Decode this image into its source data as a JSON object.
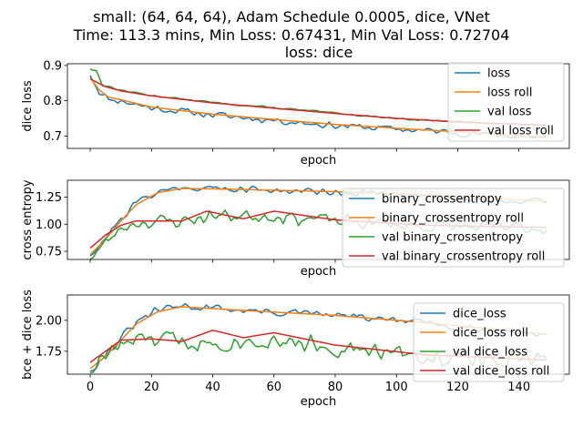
{
  "figure": {
    "title_lines": [
      "small: (64, 64, 64), Adam Schedule 0.0005, dice, VNet",
      "Time: 113.3 mins, Min Loss: 0.67431, Min Val Loss: 0.72704",
      "loss: dice"
    ]
  },
  "colors": {
    "blue": "#1f77b4",
    "orange": "#ff7f0e",
    "green": "#2ca02c",
    "red": "#d62728"
  },
  "chart_data": [
    {
      "type": "line",
      "ylabel": "dice loss",
      "xlabel": "epoch",
      "xlim": [
        -7.45,
        156.45
      ],
      "ylim": [
        0.665,
        0.905
      ],
      "yticks": [
        0.7,
        0.8,
        0.9
      ],
      "ytick_labels": [
        "0.7",
        "0.8",
        "0.9"
      ],
      "xticks": [
        0,
        20,
        40,
        60,
        80,
        100,
        120,
        140
      ],
      "xtick_labels": [],
      "legend": "top-right",
      "series": [
        {
          "name": "loss",
          "color": "#1f77b4",
          "x_start": 0,
          "x_end": 149,
          "base": [
            [
              0,
              0.875
            ],
            [
              3,
              0.825
            ],
            [
              6,
              0.805
            ],
            [
              10,
              0.8
            ],
            [
              20,
              0.78
            ],
            [
              40,
              0.76
            ],
            [
              60,
              0.745
            ],
            [
              80,
              0.73
            ],
            [
              100,
              0.72
            ],
            [
              120,
              0.71
            ],
            [
              149,
              0.695
            ]
          ],
          "noise": 0.012,
          "seed": 11
        },
        {
          "name": "loss roll",
          "color": "#ff7f0e",
          "x_start": 0,
          "x_end": 149,
          "base": [
            [
              0,
              0.865
            ],
            [
              3,
              0.83
            ],
            [
              6,
              0.81
            ],
            [
              10,
              0.803
            ],
            [
              20,
              0.782
            ],
            [
              40,
              0.762
            ],
            [
              60,
              0.747
            ],
            [
              80,
              0.733
            ],
            [
              100,
              0.722
            ],
            [
              120,
              0.712
            ],
            [
              149,
              0.697
            ]
          ],
          "noise": 0.0,
          "seed": 12
        },
        {
          "name": "val loss",
          "color": "#2ca02c",
          "x_start": 0,
          "x_end": 149,
          "base": [
            [
              0,
              0.89
            ],
            [
              2,
              0.885
            ],
            [
              4,
              0.845
            ],
            [
              10,
              0.83
            ],
            [
              20,
              0.815
            ],
            [
              40,
              0.795
            ],
            [
              60,
              0.78
            ],
            [
              80,
              0.765
            ],
            [
              100,
              0.75
            ],
            [
              120,
              0.74
            ],
            [
              149,
              0.73
            ]
          ],
          "noise": 0.003,
          "seed": 13
        },
        {
          "name": "val loss roll",
          "color": "#d62728",
          "x_start": 0,
          "x_end": 149,
          "base": [
            [
              0,
              0.862
            ],
            [
              5,
              0.84
            ],
            [
              10,
              0.828
            ],
            [
              20,
              0.814
            ],
            [
              40,
              0.794
            ],
            [
              60,
              0.779
            ],
            [
              80,
              0.764
            ],
            [
              100,
              0.75
            ],
            [
              120,
              0.74
            ],
            [
              149,
              0.731
            ]
          ],
          "noise": 0.0,
          "seed": 14
        }
      ]
    },
    {
      "type": "line",
      "ylabel": "cross entropy",
      "xlabel": "epoch",
      "xlim": [
        -7.45,
        156.45
      ],
      "ylim": [
        0.675,
        1.405
      ],
      "yticks": [
        0.75,
        1.0,
        1.25
      ],
      "ytick_labels": [
        "0.75",
        "1.00",
        "1.25"
      ],
      "xticks": [
        0,
        20,
        40,
        60,
        80,
        100,
        120,
        140
      ],
      "xtick_labels": [],
      "legend": "right",
      "series": [
        {
          "name": "binary_crossentropy",
          "color": "#1f77b4",
          "x_start": 0,
          "x_end": 149,
          "base": [
            [
              0,
              0.72
            ],
            [
              5,
              0.88
            ],
            [
              10,
              1.05
            ],
            [
              15,
              1.2
            ],
            [
              22,
              1.3
            ],
            [
              30,
              1.34
            ],
            [
              50,
              1.32
            ],
            [
              80,
              1.3
            ],
            [
              110,
              1.26
            ],
            [
              149,
              1.2
            ]
          ],
          "noise": 0.04,
          "seed": 21
        },
        {
          "name": "binary_crossentropy roll",
          "color": "#ff7f0e",
          "x_start": 0,
          "x_end": 149,
          "base": [
            [
              0,
              0.72
            ],
            [
              5,
              0.86
            ],
            [
              10,
              1.03
            ],
            [
              15,
              1.18
            ],
            [
              22,
              1.29
            ],
            [
              30,
              1.33
            ],
            [
              50,
              1.32
            ],
            [
              80,
              1.3
            ],
            [
              110,
              1.27
            ],
            [
              149,
              1.21
            ]
          ],
          "noise": 0.0,
          "seed": 22
        },
        {
          "name": "val binary_crossentropy",
          "color": "#2ca02c",
          "x_start": 0,
          "x_end": 149,
          "base": [
            [
              0,
              0.7
            ],
            [
              5,
              0.82
            ],
            [
              10,
              0.96
            ],
            [
              15,
              1.02
            ],
            [
              30,
              1.03
            ],
            [
              40,
              1.08
            ],
            [
              60,
              1.08
            ],
            [
              80,
              1.03
            ],
            [
              110,
              0.98
            ],
            [
              149,
              0.96
            ]
          ],
          "noise": 0.08,
          "seed": 23
        },
        {
          "name": "val binary_crossentropy roll",
          "color": "#d62728",
          "x_start": 0,
          "x_end": 149,
          "base": [
            [
              0,
              0.78
            ],
            [
              5,
              0.9
            ],
            [
              10,
              0.99
            ],
            [
              15,
              1.03
            ],
            [
              30,
              1.03
            ],
            [
              38,
              1.12
            ],
            [
              50,
              1.05
            ],
            [
              60,
              1.12
            ],
            [
              80,
              1.04
            ],
            [
              110,
              0.99
            ],
            [
              149,
              0.97
            ]
          ],
          "noise": 0.0,
          "seed": 24
        }
      ]
    },
    {
      "type": "line",
      "ylabel": "bce + dice loss",
      "xlabel": "epoch",
      "xlim": [
        -7.45,
        156.45
      ],
      "ylim": [
        1.565,
        2.205
      ],
      "yticks": [
        1.75,
        2.0
      ],
      "ytick_labels": [
        "1.75",
        "2.00"
      ],
      "xticks": [
        0,
        20,
        40,
        60,
        80,
        100,
        120,
        140
      ],
      "xtick_labels": [
        "0",
        "20",
        "40",
        "60",
        "80",
        "100",
        "120",
        "140"
      ],
      "legend": "top-right",
      "series": [
        {
          "name": "dice_loss",
          "color": "#1f77b4",
          "x_start": 0,
          "x_end": 149,
          "base": [
            [
              0,
              1.6
            ],
            [
              5,
              1.72
            ],
            [
              10,
              1.85
            ],
            [
              15,
              1.98
            ],
            [
              22,
              2.08
            ],
            [
              30,
              2.12
            ],
            [
              50,
              2.08
            ],
            [
              80,
              2.04
            ],
            [
              110,
              1.98
            ],
            [
              149,
              1.88
            ]
          ],
          "noise": 0.04,
          "seed": 31
        },
        {
          "name": "dice_loss roll",
          "color": "#ff7f0e",
          "x_start": 0,
          "x_end": 149,
          "base": [
            [
              0,
              1.61
            ],
            [
              5,
              1.71
            ],
            [
              10,
              1.84
            ],
            [
              15,
              1.97
            ],
            [
              22,
              2.07
            ],
            [
              30,
              2.11
            ],
            [
              50,
              2.08
            ],
            [
              80,
              2.04
            ],
            [
              110,
              1.98
            ],
            [
              149,
              1.89
            ]
          ],
          "noise": 0.0,
          "seed": 32
        },
        {
          "name": "val dice_loss",
          "color": "#2ca02c",
          "x_start": 0,
          "x_end": 149,
          "base": [
            [
              0,
              1.6
            ],
            [
              5,
              1.72
            ],
            [
              10,
              1.8
            ],
            [
              20,
              1.85
            ],
            [
              40,
              1.82
            ],
            [
              60,
              1.85
            ],
            [
              80,
              1.78
            ],
            [
              110,
              1.7
            ],
            [
              149,
              1.68
            ]
          ],
          "noise": 0.09,
          "seed": 33
        },
        {
          "name": "val dice_loss roll",
          "color": "#d62728",
          "x_start": 0,
          "x_end": 149,
          "base": [
            [
              0,
              1.66
            ],
            [
              5,
              1.75
            ],
            [
              10,
              1.84
            ],
            [
              20,
              1.85
            ],
            [
              30,
              1.83
            ],
            [
              40,
              1.92
            ],
            [
              50,
              1.86
            ],
            [
              60,
              1.9
            ],
            [
              80,
              1.8
            ],
            [
              110,
              1.72
            ],
            [
              149,
              1.68
            ]
          ],
          "noise": 0.0,
          "seed": 34
        }
      ]
    }
  ]
}
